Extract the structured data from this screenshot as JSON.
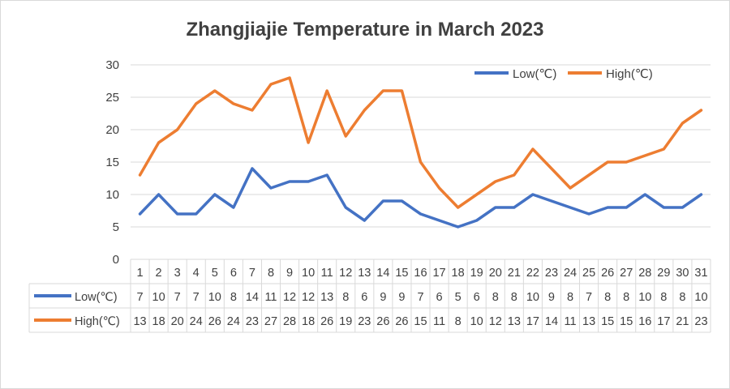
{
  "chart_data": {
    "type": "line",
    "title": "Zhangjiajie Temperature in March 2023",
    "xlabel": "",
    "ylabel": "",
    "ylim": [
      0,
      30
    ],
    "yticks": [
      0,
      5,
      10,
      15,
      20,
      25,
      30
    ],
    "grid": true,
    "legend_position": "top-right",
    "categories": [
      "1",
      "2",
      "3",
      "4",
      "5",
      "6",
      "7",
      "8",
      "9",
      "10",
      "11",
      "12",
      "13",
      "14",
      "15",
      "16",
      "17",
      "18",
      "19",
      "20",
      "21",
      "22",
      "23",
      "24",
      "25",
      "26",
      "27",
      "28",
      "29",
      "30",
      "31"
    ],
    "series": [
      {
        "name": "Low(℃)",
        "color": "#4472c4",
        "values": [
          7,
          10,
          7,
          7,
          10,
          8,
          14,
          11,
          12,
          12,
          13,
          8,
          6,
          9,
          9,
          7,
          6,
          5,
          6,
          8,
          8,
          10,
          9,
          8,
          7,
          8,
          8,
          10,
          8,
          8,
          10
        ]
      },
      {
        "name": "High(℃)",
        "color": "#ed7d31",
        "values": [
          13,
          18,
          20,
          24,
          26,
          24,
          23,
          27,
          28,
          18,
          26,
          19,
          23,
          26,
          26,
          15,
          11,
          8,
          10,
          12,
          13,
          17,
          14,
          11,
          13,
          15,
          15,
          16,
          17,
          21,
          23
        ]
      }
    ],
    "data_table": true
  }
}
